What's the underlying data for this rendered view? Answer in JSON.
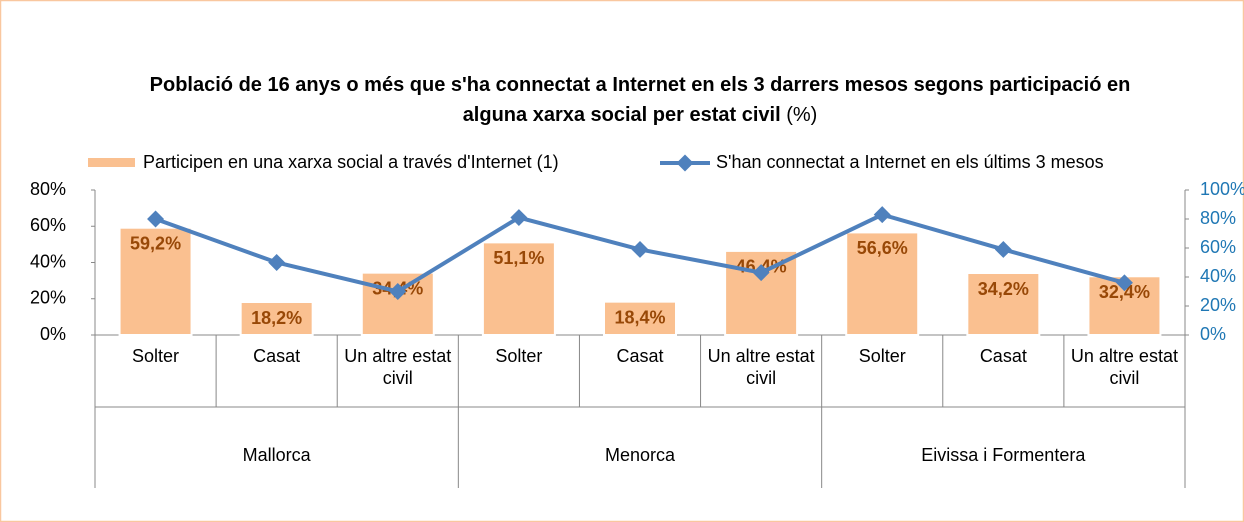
{
  "chart_data": {
    "type": "bar-line",
    "title": "Població de 16 anys o més que s'ha connectat a Internet en els 3 darrers mesos segons participació en alguna xarxa social per estat civil",
    "title_unit": "(%)",
    "categories": [
      "Solter",
      "Casat",
      "Un altre estat civil",
      "Solter",
      "Casat",
      "Un altre estat civil",
      "Solter",
      "Casat",
      "Un altre estat civil"
    ],
    "groups": [
      "Mallorca",
      "Menorca",
      "Eivissa i Formentera"
    ],
    "series": [
      {
        "name": "Participen en una xarxa social a través d'Internet (1)",
        "type": "bar",
        "color": "#fac090",
        "values": [
          59.2,
          18.2,
          34.4,
          51.1,
          18.4,
          46.4,
          56.6,
          34.2,
          32.4
        ],
        "value_labels": [
          "59,2%",
          "18,2%",
          "34,4%",
          "51,1%",
          "18,4%",
          "46,4%",
          "56,6%",
          "34,2%",
          "32,4%"
        ]
      },
      {
        "name": "S'han connectat a Internet en els últims 3 mesos",
        "type": "line",
        "axis": "y2",
        "color": "#4f81bd",
        "values": [
          80,
          50,
          30,
          81,
          59,
          43,
          83,
          59,
          36
        ]
      }
    ],
    "ylim": [
      0,
      80
    ],
    "yticks": [
      {
        "value": 0,
        "label": "0%"
      },
      {
        "value": 20,
        "label": "20%"
      },
      {
        "value": 40,
        "label": "40%"
      },
      {
        "value": 60,
        "label": "60%"
      },
      {
        "value": 80,
        "label": "80%"
      }
    ],
    "y2lim": [
      0,
      100
    ],
    "y2ticks": [
      {
        "value": 0,
        "label": "0%"
      },
      {
        "value": 20,
        "label": "20%"
      },
      {
        "value": 40,
        "label": "40%"
      },
      {
        "value": 60,
        "label": "60%"
      },
      {
        "value": 80,
        "label": "80%"
      },
      {
        "value": 100,
        "label": "100%"
      }
    ],
    "y2_color": "#1f77b4",
    "label_color": "#984807",
    "legend": "top"
  }
}
